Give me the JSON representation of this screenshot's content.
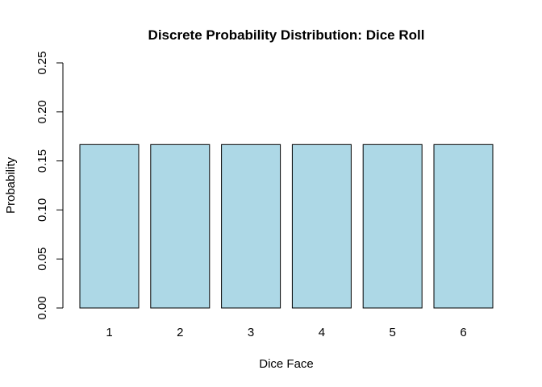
{
  "chart_data": {
    "type": "bar",
    "title": "Discrete Probability Distribution: Dice Roll",
    "xlabel": "Dice Face",
    "ylabel": "Probability",
    "categories": [
      "1",
      "2",
      "3",
      "4",
      "5",
      "6"
    ],
    "values": [
      0.1667,
      0.1667,
      0.1667,
      0.1667,
      0.1667,
      0.1667
    ],
    "ylim": [
      0,
      0.25
    ],
    "yticks": [
      "0.00",
      "0.05",
      "0.10",
      "0.15",
      "0.20",
      "0.25"
    ],
    "bar_color": "#ADD8E6",
    "bar_border_color": "#000000",
    "grid": false,
    "legend": "none"
  }
}
